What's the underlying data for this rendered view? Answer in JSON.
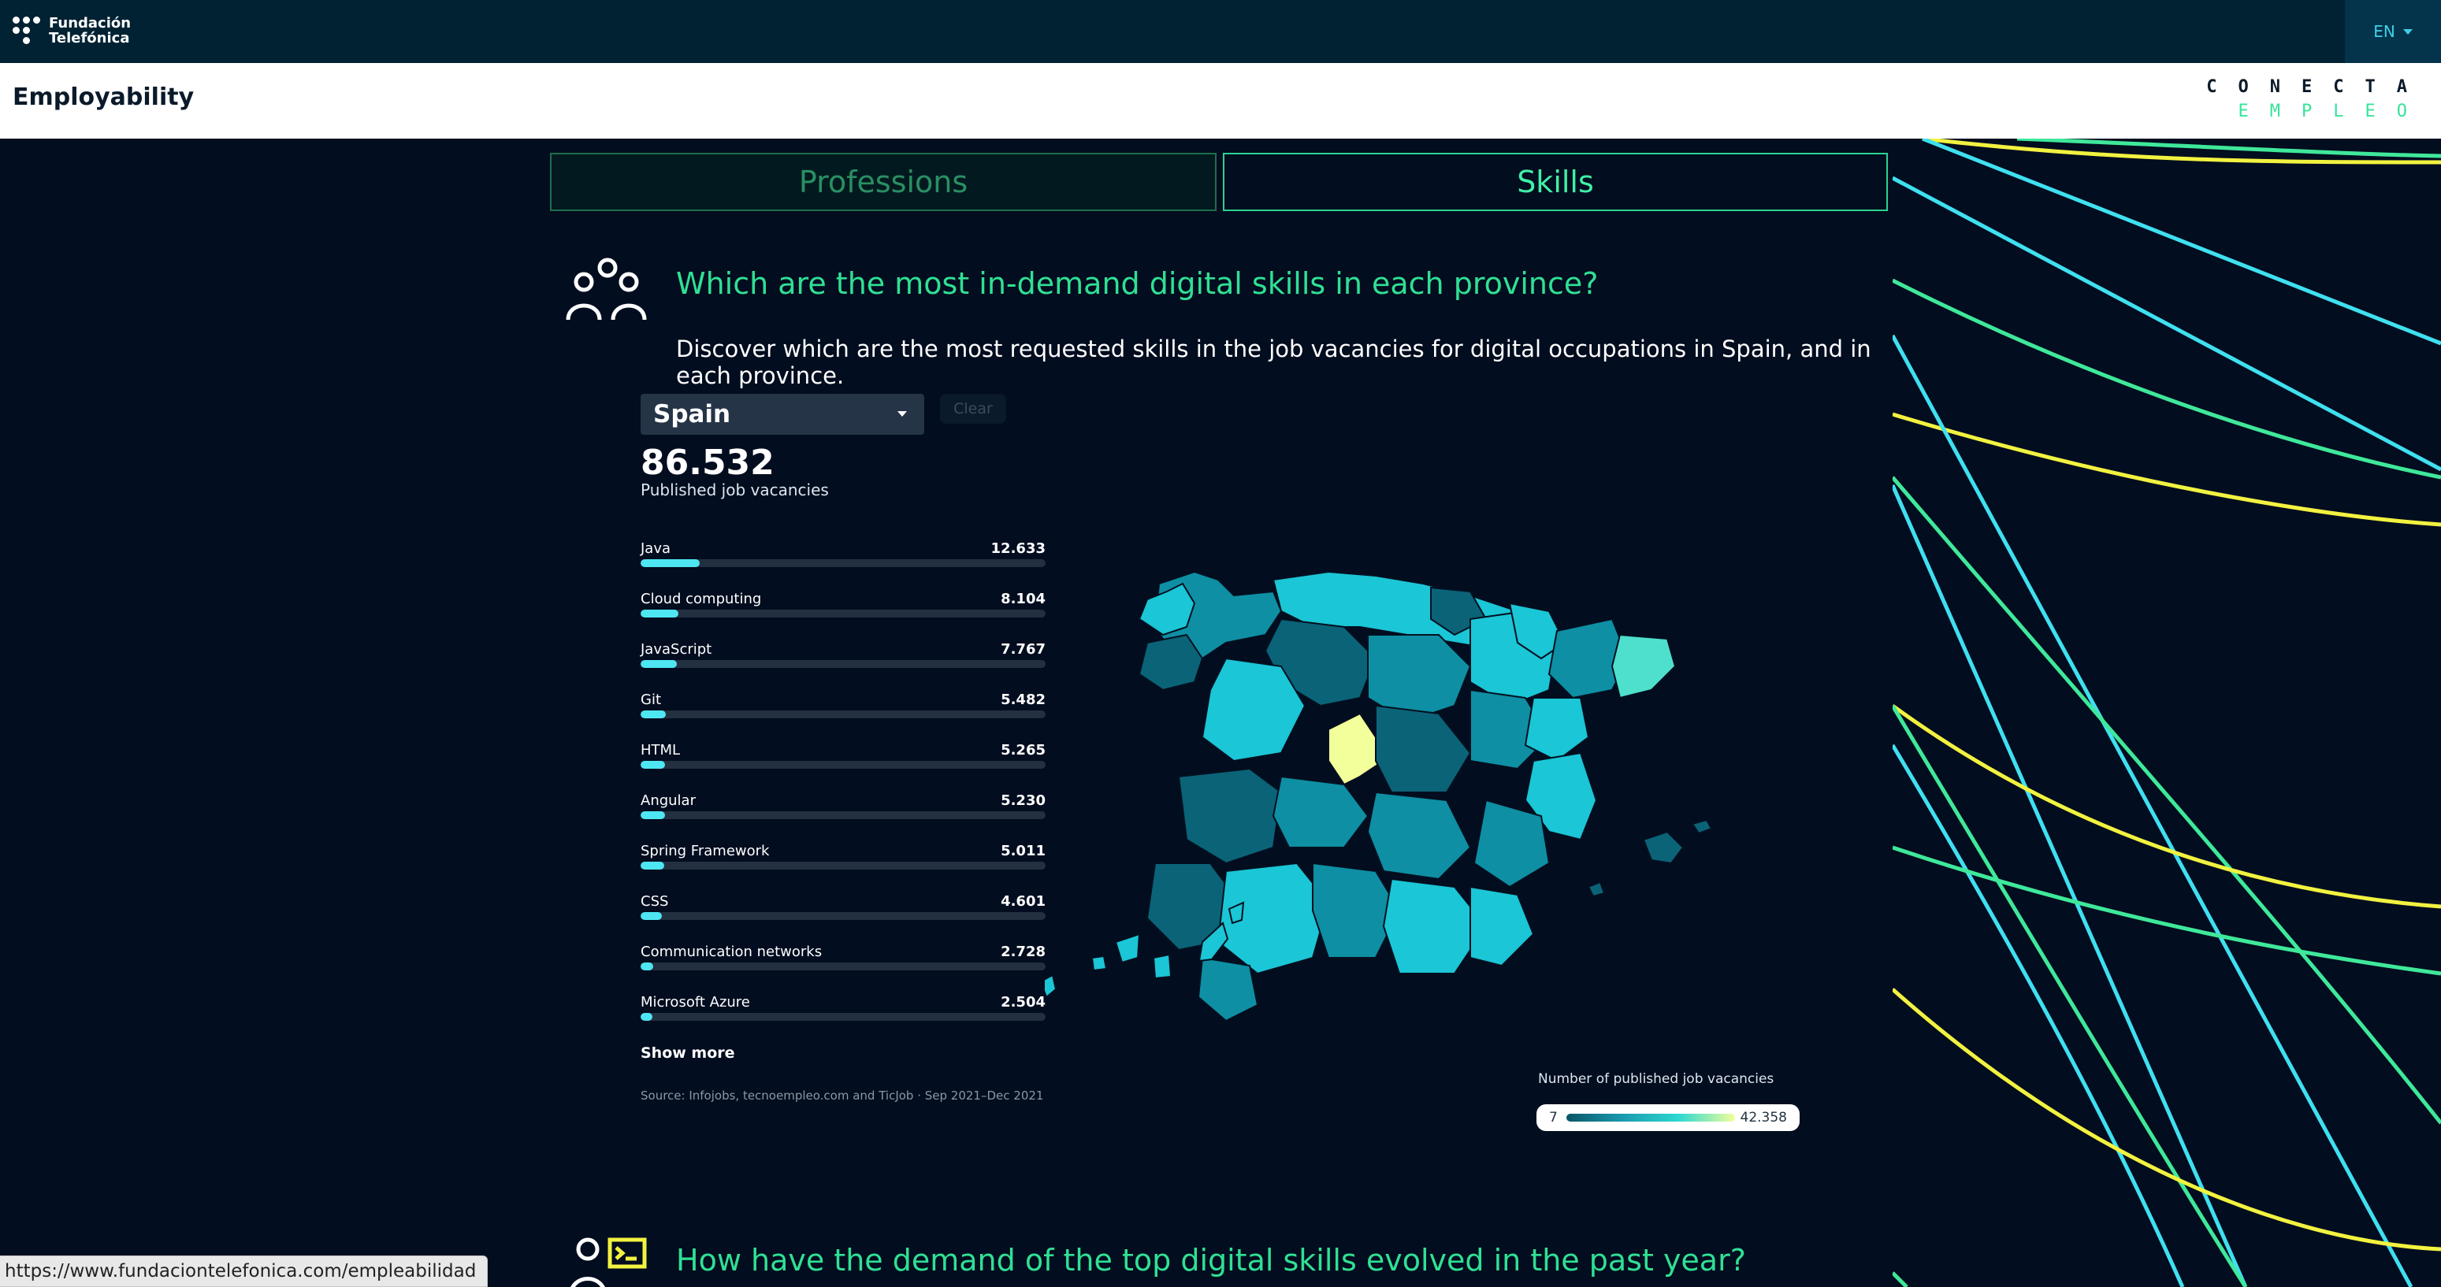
{
  "topbar": {
    "logo_line1": "Fundación",
    "logo_line2": "Telefónica",
    "language": "EN"
  },
  "header": {
    "title": "Employability",
    "brand_line1": "CONECTA",
    "brand_line2": "EMPLEO"
  },
  "tabs": [
    {
      "label": "Professions",
      "active": false
    },
    {
      "label": "Skills",
      "active": true
    }
  ],
  "section1": {
    "icon": "people-icon",
    "title": "Which are the most in-demand digital skills in each province?",
    "description": "Discover which are the most requested skills in the job vacancies for digital occupations in Spain, and in each province.",
    "region_select": "Spain",
    "clear_label": "Clear",
    "total": "86.532",
    "total_label": "Published job vacancies",
    "skills": [
      {
        "name": "Java",
        "value": "12.633",
        "fraction": 0.146
      },
      {
        "name": "Cloud computing",
        "value": "8.104",
        "fraction": 0.094
      },
      {
        "name": "JavaScript",
        "value": "7.767",
        "fraction": 0.09
      },
      {
        "name": "Git",
        "value": "5.482",
        "fraction": 0.063
      },
      {
        "name": "HTML",
        "value": "5.265",
        "fraction": 0.061
      },
      {
        "name": "Angular",
        "value": "5.230",
        "fraction": 0.06
      },
      {
        "name": "Spring Framework",
        "value": "5.011",
        "fraction": 0.058
      },
      {
        "name": "CSS",
        "value": "4.601",
        "fraction": 0.053
      },
      {
        "name": "Communication networks",
        "value": "2.728",
        "fraction": 0.032
      },
      {
        "name": "Microsoft Azure",
        "value": "2.504",
        "fraction": 0.029
      }
    ],
    "show_more": "Show more",
    "source": "Source: Infojobs, tecnoempleo.com and TicJob · Sep 2021–Dec 2021",
    "legend_title": "Number of published job vacancies",
    "legend_min": "7",
    "legend_max": "42.358",
    "colors": {
      "accent": "#30e094",
      "bar": "#4ee6f2",
      "highlight_province": "#f3ff9a"
    }
  },
  "section2": {
    "icon": "person-terminal-icon",
    "title": "How have the demand of the top digital skills evolved in the past year?"
  },
  "status_url": "https://www.fundaciontelefonica.com/empleabilidad"
}
